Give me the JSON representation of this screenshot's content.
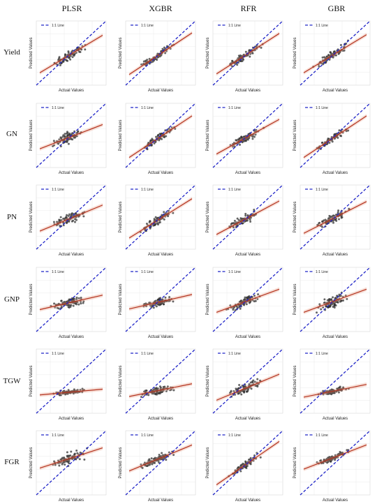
{
  "figure": {
    "columns": [
      "PLSR",
      "XGBR",
      "RFR",
      "GBR"
    ],
    "rows": [
      "Yield",
      "GN",
      "PN",
      "GNP",
      "TGW",
      "FGR"
    ],
    "xlabel": "Actual Values",
    "ylabel": "Predicted Values",
    "legend": "1:1 Line",
    "colors": {
      "identity": "#1f24c8",
      "fit": "#b3321e",
      "points": "#333333"
    }
  },
  "chart_data": {
    "type": "scatter",
    "grid": true,
    "legend_position": "top-left",
    "panels": [
      {
        "row": "Yield",
        "model": "PLSR",
        "fit_slope": 0.65,
        "fit_intercept": 0.16,
        "spread": 0.09
      },
      {
        "row": "Yield",
        "model": "XGBR",
        "fit_slope": 0.72,
        "fit_intercept": 0.13,
        "spread": 0.08
      },
      {
        "row": "Yield",
        "model": "RFR",
        "fit_slope": 0.7,
        "fit_intercept": 0.14,
        "spread": 0.08
      },
      {
        "row": "Yield",
        "model": "GBR",
        "fit_slope": 0.66,
        "fit_intercept": 0.16,
        "spread": 0.09
      },
      {
        "row": "GN",
        "model": "PLSR",
        "fit_slope": 0.42,
        "fit_intercept": 0.27,
        "spread": 0.12
      },
      {
        "row": "GN",
        "model": "XGBR",
        "fit_slope": 0.72,
        "fit_intercept": 0.12,
        "spread": 0.08
      },
      {
        "row": "GN",
        "model": "RFR",
        "fit_slope": 0.6,
        "fit_intercept": 0.18,
        "spread": 0.09
      },
      {
        "row": "GN",
        "model": "GBR",
        "fit_slope": 0.72,
        "fit_intercept": 0.12,
        "spread": 0.07
      },
      {
        "row": "PN",
        "model": "PLSR",
        "fit_slope": 0.45,
        "fit_intercept": 0.26,
        "spread": 0.11
      },
      {
        "row": "PN",
        "model": "XGBR",
        "fit_slope": 0.68,
        "fit_intercept": 0.14,
        "spread": 0.09
      },
      {
        "row": "PN",
        "model": "RFR",
        "fit_slope": 0.58,
        "fit_intercept": 0.2,
        "spread": 0.09
      },
      {
        "row": "PN",
        "model": "GBR",
        "fit_slope": 0.55,
        "fit_intercept": 0.22,
        "spread": 0.09
      },
      {
        "row": "GNP",
        "model": "PLSR",
        "fit_slope": 0.25,
        "fit_intercept": 0.33,
        "spread": 0.1
      },
      {
        "row": "GNP",
        "model": "XGBR",
        "fit_slope": 0.25,
        "fit_intercept": 0.34,
        "spread": 0.09
      },
      {
        "row": "GNP",
        "model": "RFR",
        "fit_slope": 0.4,
        "fit_intercept": 0.28,
        "spread": 0.11
      },
      {
        "row": "GNP",
        "model": "GBR",
        "fit_slope": 0.4,
        "fit_intercept": 0.28,
        "spread": 0.12
      },
      {
        "row": "TGW",
        "model": "PLSR",
        "fit_slope": 0.1,
        "fit_intercept": 0.28,
        "spread": 0.05
      },
      {
        "row": "TGW",
        "model": "XGBR",
        "fit_slope": 0.22,
        "fit_intercept": 0.25,
        "spread": 0.08
      },
      {
        "row": "TGW",
        "model": "RFR",
        "fit_slope": 0.45,
        "fit_intercept": 0.18,
        "spread": 0.1
      },
      {
        "row": "TGW",
        "model": "GBR",
        "fit_slope": 0.22,
        "fit_intercept": 0.24,
        "spread": 0.06
      },
      {
        "row": "FGR",
        "model": "PLSR",
        "fit_slope": 0.35,
        "fit_intercept": 0.4,
        "spread": 0.12
      },
      {
        "row": "FGR",
        "model": "XGBR",
        "fit_slope": 0.45,
        "fit_intercept": 0.35,
        "spread": 0.08
      },
      {
        "row": "FGR",
        "model": "RFR",
        "fit_slope": 0.75,
        "fit_intercept": 0.12,
        "spread": 0.08
      },
      {
        "row": "FGR",
        "model": "GBR",
        "fit_slope": 0.42,
        "fit_intercept": 0.38,
        "spread": 0.07
      }
    ]
  }
}
